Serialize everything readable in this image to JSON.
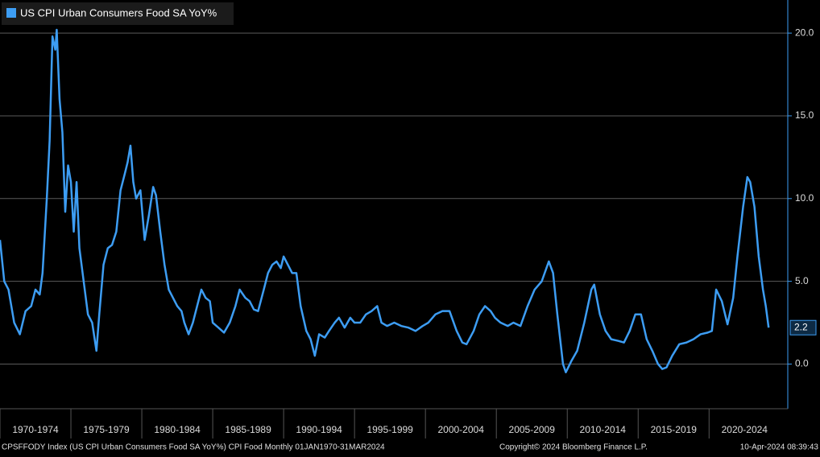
{
  "chart_data": {
    "type": "line",
    "legend_label": "US CPI Urban Consumers Food SA YoY%",
    "footer_left": "CPSFFODY Index (US CPI Urban Consumers Food SA YoY%) CPI Food  Monthly 01JAN1970-31MAR2024",
    "footer_center": "Copyright© 2024 Bloomberg Finance L.P.",
    "footer_right": "10-Apr-2024 08:39:43",
    "xlim": [
      1970,
      2025.55
    ],
    "ylim": [
      -2.7,
      22
    ],
    "xticks": [
      {
        "value": 1970,
        "label": "1970-1974"
      },
      {
        "value": 1975,
        "label": "1975-1979"
      },
      {
        "value": 1980,
        "label": "1980-1984"
      },
      {
        "value": 1985,
        "label": "1985-1989"
      },
      {
        "value": 1990,
        "label": "1990-1994"
      },
      {
        "value": 1995,
        "label": "1995-1999"
      },
      {
        "value": 2000,
        "label": "2000-2004"
      },
      {
        "value": 2005,
        "label": "2005-2009"
      },
      {
        "value": 2010,
        "label": "2010-2014"
      },
      {
        "value": 2015,
        "label": "2015-2019"
      },
      {
        "value": 2020,
        "label": "2020-2024"
      }
    ],
    "yticks": [
      {
        "value": 0,
        "label": "0.0"
      },
      {
        "value": 5,
        "label": "5.0"
      },
      {
        "value": 10,
        "label": "10.0"
      },
      {
        "value": 15,
        "label": "15.0"
      },
      {
        "value": 20,
        "label": "20.0"
      }
    ],
    "grid": true,
    "x": [
      1970.0,
      1970.3,
      1970.6,
      1971.0,
      1971.4,
      1971.8,
      1972.2,
      1972.5,
      1972.8,
      1973.0,
      1973.3,
      1973.5,
      1973.7,
      1973.9,
      1974.0,
      1974.2,
      1974.4,
      1974.6,
      1974.8,
      1975.0,
      1975.2,
      1975.4,
      1975.6,
      1975.9,
      1976.2,
      1976.5,
      1976.8,
      1977.0,
      1977.3,
      1977.6,
      1977.9,
      1978.2,
      1978.5,
      1978.8,
      1979.0,
      1979.2,
      1979.4,
      1979.6,
      1979.9,
      1980.2,
      1980.5,
      1980.8,
      1981.0,
      1981.3,
      1981.6,
      1981.9,
      1982.2,
      1982.5,
      1982.8,
      1983.0,
      1983.3,
      1983.6,
      1983.9,
      1984.2,
      1984.5,
      1984.8,
      1985.0,
      1985.4,
      1985.8,
      1986.2,
      1986.6,
      1986.9,
      1987.3,
      1987.6,
      1987.9,
      1988.2,
      1988.6,
      1988.9,
      1989.2,
      1989.5,
      1989.8,
      1990.0,
      1990.3,
      1990.6,
      1990.9,
      1991.2,
      1991.6,
      1991.9,
      1992.2,
      1992.5,
      1992.9,
      1993.2,
      1993.6,
      1993.9,
      1994.3,
      1994.7,
      1995.0,
      1995.4,
      1995.8,
      1996.2,
      1996.6,
      1996.9,
      1997.3,
      1997.8,
      1998.3,
      1998.8,
      1999.3,
      1999.8,
      2000.2,
      2000.7,
      2001.2,
      2001.7,
      2002.2,
      2002.6,
      2002.9,
      2003.4,
      2003.8,
      2004.2,
      2004.6,
      2004.9,
      2005.3,
      2005.8,
      2006.2,
      2006.7,
      2007.2,
      2007.7,
      2008.2,
      2008.7,
      2009.0,
      2009.3,
      2009.7,
      2009.9,
      2010.3,
      2010.7,
      2011.2,
      2011.7,
      2011.9,
      2012.3,
      2012.7,
      2013.1,
      2013.6,
      2014.0,
      2014.4,
      2014.8,
      2015.2,
      2015.6,
      2016.0,
      2016.4,
      2016.7,
      2017.0,
      2017.4,
      2017.9,
      2018.4,
      2018.9,
      2019.4,
      2019.9,
      2020.2,
      2020.5,
      2020.9,
      2021.3,
      2021.7,
      2022.0,
      2022.4,
      2022.7,
      2022.9,
      2023.2,
      2023.5,
      2023.8,
      2024.0,
      2024.2
    ],
    "series": [
      {
        "name": "US CPI Urban Consumers Food SA YoY%",
        "color": "#3d9df3",
        "values": [
          7.5,
          5,
          4.5,
          2.5,
          1.8,
          3.2,
          3.5,
          4.5,
          4.2,
          5.5,
          10,
          13.5,
          19.8,
          19,
          20.2,
          16,
          14,
          9.2,
          12,
          11,
          8,
          11,
          7,
          5,
          3,
          2.5,
          0.8,
          3,
          6,
          7,
          7.2,
          8,
          10.5,
          11.5,
          12.2,
          13.2,
          11,
          10,
          10.5,
          7.5,
          9,
          10.7,
          10.2,
          8,
          6,
          4.5,
          4,
          3.5,
          3.2,
          2.5,
          1.8,
          2.5,
          3.5,
          4.5,
          4,
          3.8,
          2.5,
          2.2,
          1.9,
          2.5,
          3.5,
          4.5,
          4,
          3.8,
          3.3,
          3.2,
          4.5,
          5.5,
          6,
          6.2,
          5.8,
          6.5,
          6,
          5.5,
          5.5,
          3.5,
          2,
          1.5,
          0.5,
          1.8,
          1.6,
          2,
          2.5,
          2.8,
          2.2,
          2.8,
          2.5,
          2.5,
          3,
          3.2,
          3.5,
          2.5,
          2.3,
          2.5,
          2.3,
          2.2,
          2,
          2.3,
          2.5,
          3,
          3.2,
          3.2,
          2,
          1.3,
          1.2,
          2,
          3,
          3.5,
          3.2,
          2.8,
          2.5,
          2.3,
          2.5,
          2.3,
          3.5,
          4.5,
          5,
          6.2,
          5.5,
          3,
          0,
          -0.5,
          0.2,
          0.8,
          2.5,
          4.5,
          4.8,
          3,
          2,
          1.5,
          1.4,
          1.3,
          2,
          3,
          3,
          1.5,
          0.8,
          0,
          -0.3,
          -0.2,
          0.5,
          1.2,
          1.3,
          1.5,
          1.8,
          1.9,
          2,
          4.5,
          3.8,
          2.4,
          4,
          6.5,
          9.5,
          11.3,
          11,
          9.5,
          6.5,
          4.5,
          3.5,
          2.2
        ]
      }
    ]
  }
}
